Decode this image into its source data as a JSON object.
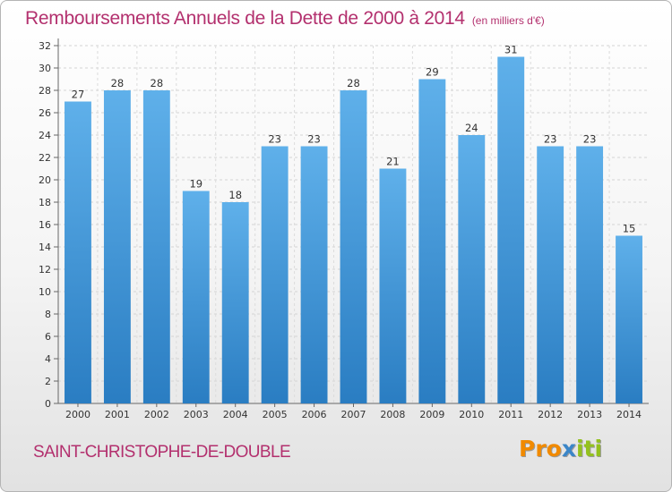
{
  "title": {
    "main": "Remboursements Annuels de la Dette de 2000 à 2014",
    "unit": "(en milliers d'€)"
  },
  "place_name": "SAINT-CHRISTOPHE-DE-DOUBLE",
  "logo": {
    "part1": "Pro",
    "part2": "x",
    "part3": "iti"
  },
  "colors": {
    "title": "#b3306e",
    "bar_light": "#5fb0ea",
    "bar_dark": "#2a7dc2",
    "logo_orange": "#f18a00",
    "logo_blue": "#3b86c8",
    "logo_green": "#94c11f"
  },
  "chart_data": {
    "type": "bar",
    "categories": [
      "2000",
      "2001",
      "2002",
      "2003",
      "2004",
      "2005",
      "2006",
      "2007",
      "2008",
      "2009",
      "2010",
      "2011",
      "2012",
      "2013",
      "2014"
    ],
    "series": [
      {
        "values": [
          27,
          28,
          28,
          19,
          18,
          23,
          23,
          28,
          21,
          29,
          24,
          31,
          23,
          23,
          15
        ]
      }
    ],
    "data_labels": [
      "27",
      "28",
      "28",
      "19",
      "18",
      "23",
      "23",
      "28",
      "21",
      "29",
      "24",
      "31",
      "23",
      "23",
      "15"
    ],
    "y_ticks": [
      "0",
      "2",
      "4",
      "6",
      "8",
      "10",
      "12",
      "14",
      "16",
      "18",
      "20",
      "22",
      "24",
      "26",
      "28",
      "30",
      "32"
    ],
    "ylim": [
      0,
      32
    ],
    "y_step": 2,
    "grid": true,
    "legend": "none"
  }
}
